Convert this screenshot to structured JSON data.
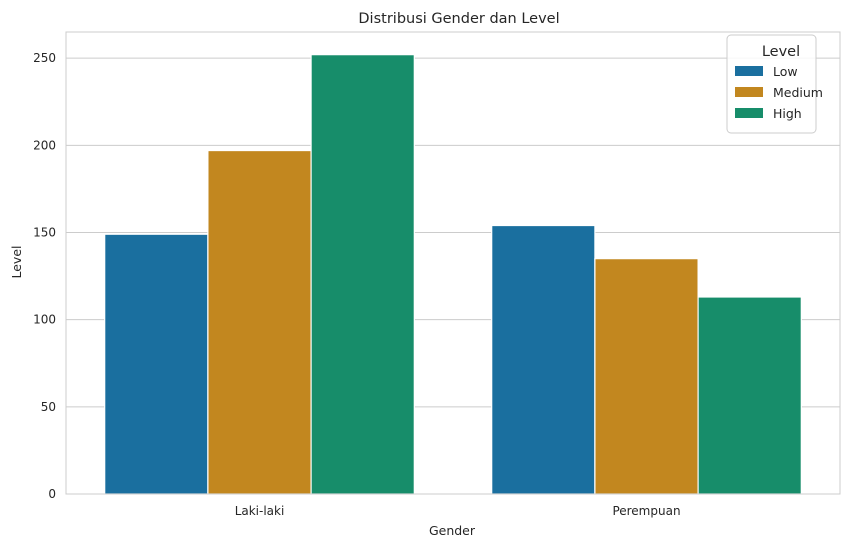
{
  "chart_data": {
    "type": "bar",
    "title": "Distribusi Gender dan Level",
    "xlabel": "Gender",
    "ylabel": "Level",
    "categories": [
      "Laki-laki",
      "Perempuan"
    ],
    "series": [
      {
        "name": "Low",
        "color": "#1a6f9f",
        "values": [
          149,
          154
        ]
      },
      {
        "name": "Medium",
        "color": "#c2871f",
        "values": [
          197,
          135
        ]
      },
      {
        "name": "High",
        "color": "#178d6a",
        "values": [
          252,
          113
        ]
      }
    ],
    "ylim": [
      0,
      265
    ],
    "yticks": [
      0,
      50,
      100,
      150,
      200,
      250
    ],
    "grid": true,
    "legend": {
      "title": "Level",
      "placement": "top-right"
    }
  }
}
